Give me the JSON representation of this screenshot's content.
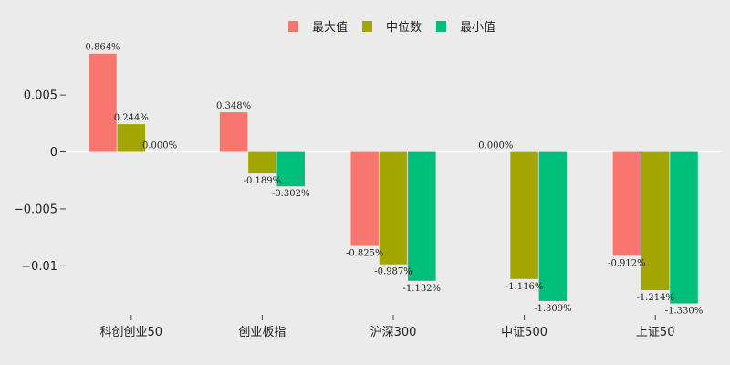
{
  "chart_data": {
    "type": "bar",
    "categories": [
      "科创创业50",
      "创业板指",
      "沪深300",
      "中证500",
      "上证50"
    ],
    "series": [
      {
        "name": "最大值",
        "color": "#f8766d",
        "values": [
          0.00864,
          0.00348,
          -0.00825,
          0.0,
          -0.00912
        ],
        "labels": [
          "0.864%",
          "0.348%",
          "-0.825%",
          "0.000%",
          "-0.912%"
        ]
      },
      {
        "name": "中位数",
        "color": "#a3a500",
        "values": [
          0.00244,
          -0.00189,
          -0.00987,
          -0.01116,
          -0.01214
        ],
        "labels": [
          "0.244%",
          "-0.189%",
          "-0.987%",
          "-1.116%",
          "-1.214%"
        ]
      },
      {
        "name": "最小值",
        "color": "#00bf7d",
        "values": [
          0.0,
          -0.00302,
          -0.01132,
          -0.01309,
          -0.0133
        ],
        "labels": [
          "0.000%",
          "-0.302%",
          "-1.132%",
          "-1.309%",
          "-1.330%"
        ]
      }
    ],
    "yticks": [
      0.005,
      0,
      -0.005,
      -0.01
    ],
    "ytick_labels": [
      "0.005",
      "0",
      "−0.005",
      "−0.01"
    ],
    "ylim": [
      -0.0143,
      0.0095
    ],
    "legend_position": "top-center",
    "grid": false
  }
}
